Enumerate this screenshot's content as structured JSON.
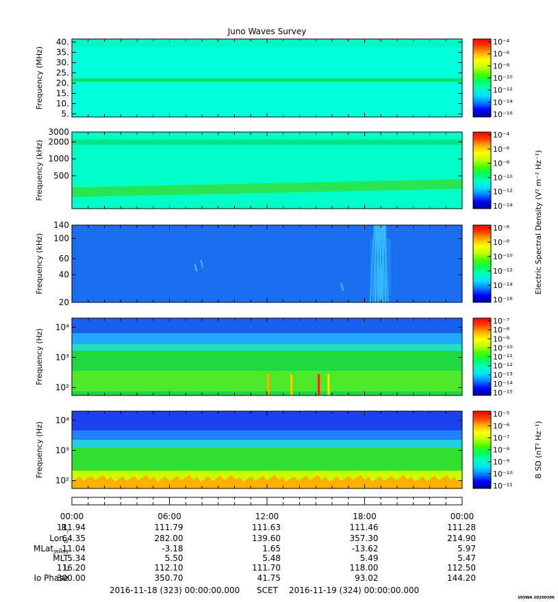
{
  "title": "Juno Waves Survey",
  "watermark": "UIOWA 20200306",
  "colormap": [
    "#0000a0",
    "#0000ff",
    "#0080ff",
    "#00e0ff",
    "#00ffc0",
    "#00ff60",
    "#40ff00",
    "#c0ff00",
    "#ffff00",
    "#ffb000",
    "#ff4000",
    "#ff0000"
  ],
  "colorbar_shared_label": "Electric Spectral Density (V² m⁻² Hz⁻¹)",
  "chart_data": [
    {
      "type": "heatmap",
      "ylabel": "Frequency (MHz)",
      "ylim": [
        3.5,
        41.5
      ],
      "yscale": "linear",
      "yticks": [
        5,
        10,
        15,
        20,
        25,
        30,
        35,
        40
      ],
      "yticklabels": [
        "5.",
        "10.",
        "15.",
        "20.",
        "25.",
        "30.",
        "35.",
        "40."
      ],
      "colorbar_ticks": [
        "10⁻⁴",
        "10⁻⁶",
        "10⁻⁸",
        "10⁻¹⁰",
        "10⁻¹²",
        "10⁻¹⁴",
        "10⁻¹⁶"
      ],
      "background": "#00ffdc",
      "features": [
        {
          "kind": "band",
          "y": 21.5,
          "width": 1.6,
          "color": "#00e060"
        }
      ]
    },
    {
      "type": "heatmap",
      "ylabel": "Frequency (kHz)",
      "ylim": [
        130,
        3000
      ],
      "yscale": "log",
      "yticks": [
        500,
        1000,
        2000,
        3000
      ],
      "yticklabels": [
        "500",
        "1000",
        "2000",
        "3000"
      ],
      "colorbar_ticks": [
        "10⁻⁴",
        "10⁻⁶",
        "10⁻⁸",
        "10⁻¹⁰",
        "10⁻¹²",
        "10⁻¹⁴"
      ],
      "background": "#00ffc8",
      "features": [
        {
          "kind": "band",
          "y": 1990,
          "width": 0.05,
          "color": "#00e070"
        },
        {
          "kind": "band",
          "y": 290,
          "width": 0.2,
          "color": "#20e840"
        }
      ]
    },
    {
      "type": "heatmap",
      "ylabel": "Frequency (kHz)",
      "ylim": [
        20,
        140
      ],
      "yscale": "log",
      "yticks": [
        20,
        40,
        60,
        100,
        140
      ],
      "yticklabels": [
        "20",
        "40",
        "60",
        "100",
        "140"
      ],
      "colorbar_ticks": [
        "10⁻⁶",
        "10⁻⁸",
        "10⁻¹⁰",
        "10⁻¹²",
        "10⁻¹⁴",
        "10⁻¹⁶"
      ],
      "background": "#1a6ef0",
      "features": [
        {
          "kind": "burst",
          "x0": 18.6,
          "x1": 19.3,
          "color": "#40d0ff"
        }
      ]
    },
    {
      "type": "heatmap",
      "ylabel": "Frequency (Hz)",
      "ylim": [
        55,
        20000
      ],
      "yscale": "log",
      "yticks": [
        100,
        1000,
        10000
      ],
      "yticklabels": [
        "10²",
        "10³",
        "10⁴"
      ],
      "colorbar_ticks": [
        "10⁻⁷",
        "10⁻⁸",
        "10⁻⁹",
        "10⁻¹⁰",
        "10⁻¹¹",
        "10⁻¹²",
        "10⁻¹³",
        "10⁻¹⁴",
        "10⁻¹⁵"
      ],
      "background": "#20d840"
    },
    {
      "type": "heatmap",
      "ylabel": "Frequency (Hz)",
      "ylim": [
        55,
        20000
      ],
      "yscale": "log",
      "yticks": [
        100,
        1000,
        10000
      ],
      "yticklabels": [
        "10²",
        "10³",
        "10⁴"
      ],
      "colorbar_label": "B SD (nT² Hz⁻¹)",
      "colorbar_ticks": [
        "10⁻⁵",
        "10⁻⁶",
        "10⁻⁷",
        "10⁻⁸",
        "10⁻⁹",
        "10⁻¹⁰",
        "10⁻¹¹"
      ],
      "background": "#30e030"
    }
  ],
  "xaxis": {
    "time_labels": [
      "00:00",
      "06:00",
      "12:00",
      "18:00",
      "00:00"
    ],
    "rows": [
      {
        "label": "R_J",
        "values": [
          "111.94",
          "111.79",
          "111.63",
          "111.46",
          "111.28"
        ]
      },
      {
        "label": "Lon_III",
        "values": [
          "64.35",
          "282.00",
          "139.60",
          "357.30",
          "214.90"
        ]
      },
      {
        "label": "MLat_JRM09",
        "values": [
          "-11.04",
          "-3.18",
          "1.65",
          "-13.62",
          "5.97"
        ]
      },
      {
        "label": "MLT",
        "values": [
          "5.34",
          "5.50",
          "5.48",
          "5.49",
          "5.47"
        ]
      },
      {
        "label": "L",
        "values": [
          "116.20",
          "112.10",
          "111.70",
          "118.00",
          "112.50"
        ]
      },
      {
        "label": "Io Phase",
        "values": [
          "300.00",
          "350.70",
          "41.75",
          "93.02",
          "144.20"
        ]
      }
    ],
    "row_label_parts": {
      "rj_main": "R",
      "rj_sub": "J",
      "lon_main": "Lon",
      "lon_sub": "III",
      "mlat_main": "MLat",
      "mlat_sub": "JRM09",
      "mlt": "MLT",
      "l": "L",
      "io": "Io Phase"
    },
    "footer": {
      "start": "2016-11-18 (323) 00:00:00.000",
      "mid": "SCET",
      "end": "2016-11-19 (324) 00:00:00.000"
    }
  }
}
